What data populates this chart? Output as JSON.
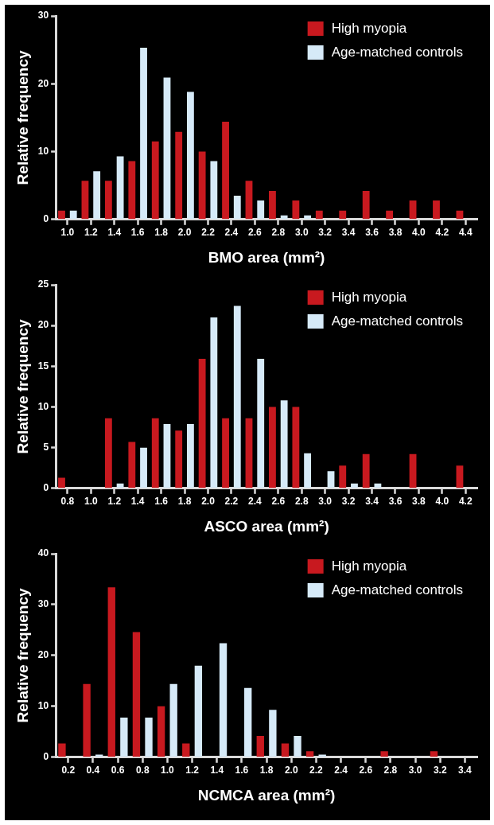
{
  "chart_data": [
    {
      "type": "bar",
      "categories": [
        "1.0",
        "1.2",
        "1.4",
        "1.6",
        "1.8",
        "2.0",
        "2.2",
        "2.4",
        "2.6",
        "2.8",
        "3.0",
        "3.2",
        "3.4",
        "3.6",
        "3.8",
        "4.0",
        "4.2",
        "4.4"
      ],
      "xlabel": "BMO area (mm²)",
      "ylabel": "Relative frequency",
      "ylim": [
        0,
        30
      ],
      "yticks": [
        0,
        10,
        20,
        30
      ],
      "legend": "top right",
      "series": [
        {
          "name": "High myopia",
          "color": "#c8191f",
          "values": [
            1.3,
            5.7,
            5.7,
            8.6,
            11.5,
            12.9,
            10.0,
            14.4,
            5.7,
            4.2,
            2.8,
            1.3,
            1.3,
            4.2,
            1.3,
            2.8,
            2.8,
            1.3
          ]
        },
        {
          "name": "Age-matched controls",
          "color": "#d6eaf8",
          "values": [
            1.3,
            7.1,
            9.3,
            25.3,
            20.9,
            18.8,
            8.6,
            3.5,
            2.8,
            0.6,
            0.6,
            0,
            0,
            0,
            0,
            0,
            0,
            0
          ]
        }
      ]
    },
    {
      "type": "bar",
      "categories": [
        "0.8",
        "1.0",
        "1.2",
        "1.4",
        "1.6",
        "1.8",
        "2.0",
        "2.2",
        "2.4",
        "2.6",
        "2.8",
        "3.0",
        "3.2",
        "3.4",
        "3.6",
        "3.8",
        "4.0",
        "4.2"
      ],
      "xlabel": "ASCO area (mm²)",
      "ylabel": "Relative frequency",
      "ylim": [
        0,
        25
      ],
      "yticks": [
        0,
        5,
        10,
        15,
        20,
        25
      ],
      "legend": "top right",
      "series": [
        {
          "name": "High myopia",
          "color": "#c8191f",
          "values": [
            1.3,
            0,
            8.6,
            5.7,
            8.6,
            7.1,
            15.9,
            8.6,
            8.6,
            10.0,
            10.0,
            0,
            2.8,
            4.2,
            0,
            4.2,
            0,
            2.8
          ]
        },
        {
          "name": "Age-matched controls",
          "color": "#d6eaf8",
          "values": [
            0,
            0,
            0.6,
            5.0,
            7.9,
            7.9,
            21.0,
            22.4,
            15.9,
            10.8,
            4.3,
            2.1,
            0.6,
            0.6,
            0,
            0,
            0,
            0
          ]
        }
      ]
    },
    {
      "type": "bar",
      "categories": [
        "0.2",
        "0.4",
        "0.6",
        "0.8",
        "1.0",
        "1.2",
        "1.4",
        "1.6",
        "1.8",
        "2.0",
        "2.2",
        "2.4",
        "2.6",
        "2.8",
        "3.0",
        "3.2",
        "3.4"
      ],
      "xlabel": "NCMCA area (mm²)",
      "ylabel": "Relative frequency",
      "ylim": [
        0,
        40
      ],
      "yticks": [
        0,
        10,
        20,
        30,
        40
      ],
      "legend": "top right",
      "series": [
        {
          "name": "High myopia",
          "color": "#c8191f",
          "values": [
            2.7,
            14.4,
            33.4,
            24.6,
            10.0,
            2.7,
            0,
            0,
            4.2,
            2.7,
            1.2,
            0,
            0,
            1.2,
            0,
            1.2,
            0
          ]
        },
        {
          "name": "Age-matched controls",
          "color": "#d6eaf8",
          "values": [
            0,
            0.5,
            7.8,
            7.8,
            14.4,
            18.0,
            22.4,
            13.6,
            9.3,
            4.2,
            0.5,
            0,
            0,
            0,
            0,
            0,
            0
          ]
        }
      ]
    }
  ]
}
